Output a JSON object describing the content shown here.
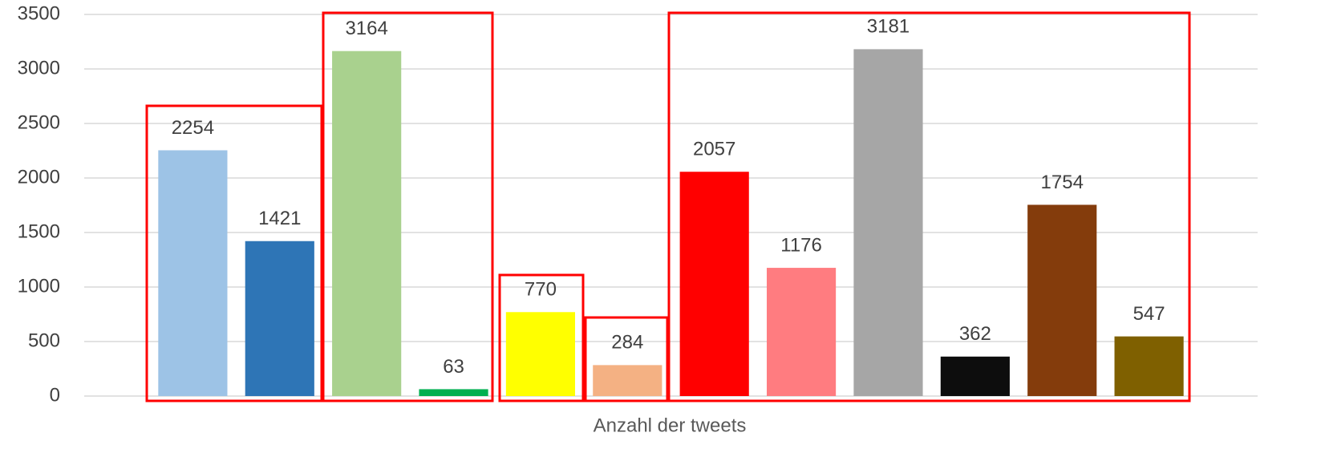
{
  "chart_data": {
    "type": "bar",
    "x_label": "Anzahl der tweets",
    "categories": [
      "Anzahl der tweets"
    ],
    "series": [
      {
        "color": "#9dc3e6",
        "values": [
          2254
        ]
      },
      {
        "color": "#2e75b6",
        "values": [
          1421
        ]
      },
      {
        "color": "#a9d18e",
        "values": [
          3164
        ]
      },
      {
        "color": "#00b050",
        "values": [
          63
        ]
      },
      {
        "color": "#ffff00",
        "values": [
          770
        ]
      },
      {
        "color": "#f4b183",
        "values": [
          284
        ]
      },
      {
        "color": "#ff0000",
        "values": [
          2057
        ]
      },
      {
        "color": "#ff7c80",
        "values": [
          1176
        ]
      },
      {
        "color": "#a6a6a6",
        "values": [
          3181
        ]
      },
      {
        "color": "#0d0d0d",
        "values": [
          362
        ]
      },
      {
        "color": "#843c0c",
        "values": [
          1754
        ]
      },
      {
        "color": "#7f6000",
        "values": [
          547
        ]
      }
    ],
    "ylim": [
      0,
      3500
    ],
    "yticks": [
      0,
      500,
      1000,
      1500,
      2000,
      2500,
      3000,
      3500
    ],
    "grid": true
  }
}
